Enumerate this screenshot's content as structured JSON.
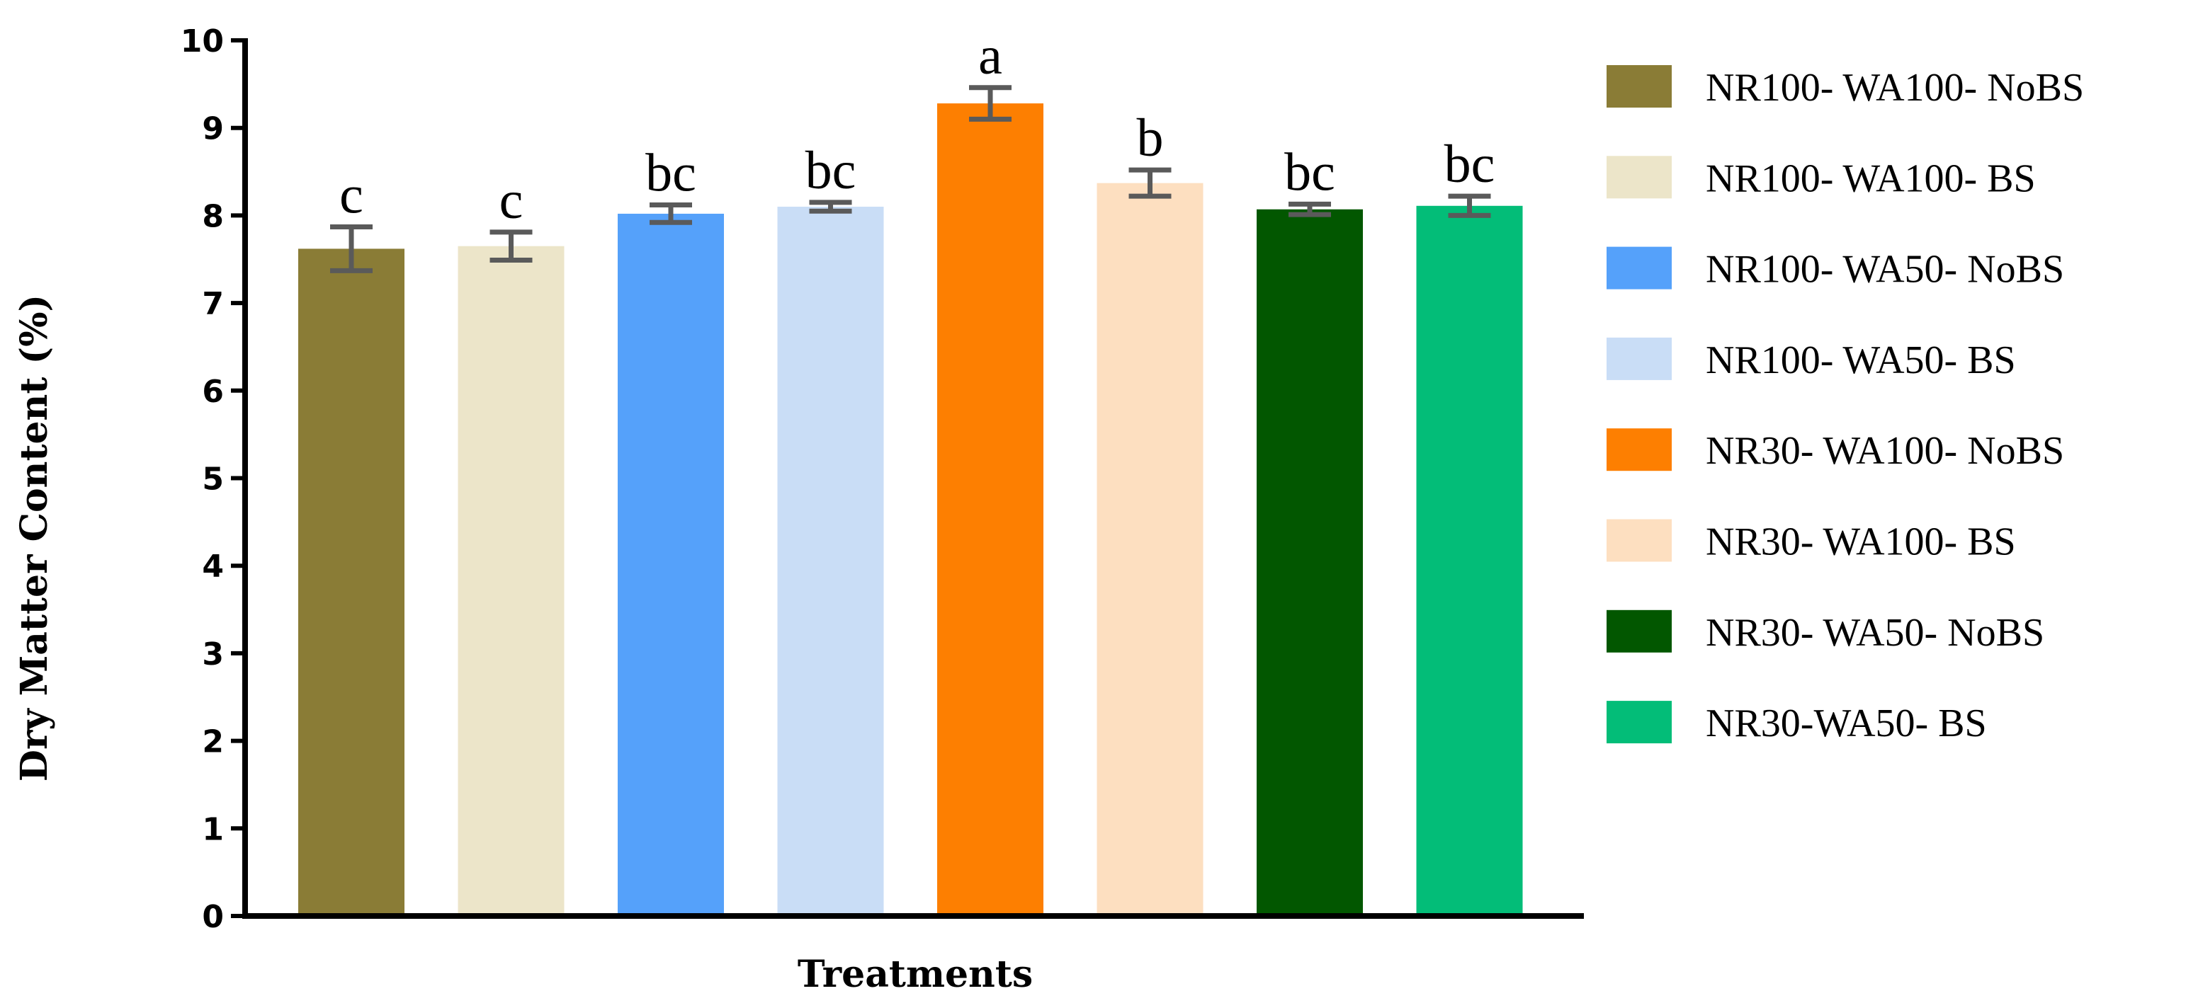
{
  "chart_data": {
    "type": "bar",
    "xlabel": "Treatments",
    "ylabel": "Dry Matter Content (%)",
    "ylim": [
      0,
      10
    ],
    "yticks": [
      0,
      1,
      2,
      3,
      4,
      5,
      6,
      7,
      8,
      9,
      10
    ],
    "grid": false,
    "legend_position": "right",
    "categories": [
      "NR100- WA100- NoBS",
      "NR100- WA100- BS",
      "NR100- WA50- NoBS",
      "NR100- WA50- BS",
      "NR30- WA100- NoBS",
      "NR30- WA100- BS",
      "NR30- WA50- NoBS",
      "NR30-WA50- BS"
    ],
    "values": [
      7.62,
      7.65,
      8.02,
      8.1,
      9.28,
      8.37,
      8.07,
      8.11
    ],
    "errors": [
      0.25,
      0.16,
      0.1,
      0.05,
      0.18,
      0.15,
      0.06,
      0.11
    ],
    "significance": [
      "c",
      "c",
      "bc",
      "bc",
      "a",
      "b",
      "bc",
      "bc"
    ],
    "colors": [
      "#8a7c36",
      "#ece5c9",
      "#55a1fa",
      "#c9ddf6",
      "#fd7f01",
      "#fddfc0",
      "#025700",
      "#03bd78"
    ],
    "errorbar_color": "#5a5a5a"
  }
}
